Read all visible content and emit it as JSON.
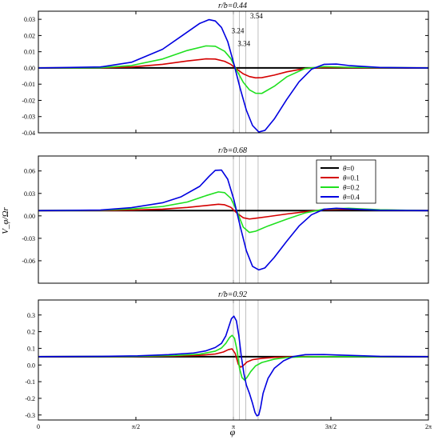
{
  "figure": {
    "ylabel": "V_φ/Ωr",
    "xlabel": "φ"
  },
  "chart_data": [
    {
      "type": "line",
      "panel": 1,
      "title": "r/b=0.44",
      "xlim": [
        0,
        6.2832
      ],
      "ylim": [
        -0.04,
        0.035
      ],
      "yticks": [
        "0.03",
        "0.02",
        "0.01",
        "0.00",
        "-0.01",
        "-0.02",
        "-0.03",
        "-0.04"
      ],
      "ytick_values": [
        0.03,
        0.02,
        0.01,
        0.0,
        -0.01,
        -0.02,
        -0.03,
        -0.04
      ],
      "reference_lines": [
        3.1416,
        3.24,
        3.34,
        3.54
      ],
      "annotations": [
        {
          "text": "3.24",
          "x": 3.24,
          "y": 0.0215
        },
        {
          "text": "3.34",
          "x": 3.34,
          "y": 0.0135
        },
        {
          "text": "3.54",
          "x": 3.54,
          "y": 0.0305
        }
      ],
      "series": [
        {
          "name": "θ=0",
          "color": "#000000",
          "x": [
            0,
            6.2832
          ],
          "y": [
            0.0,
            0.0
          ]
        },
        {
          "name": "θ=0.1",
          "color": "#d40000",
          "x": [
            0,
            1.0,
            1.5,
            2.0,
            2.4,
            2.7,
            2.85,
            3.0,
            3.1,
            3.2,
            3.3,
            3.4,
            3.5,
            3.6,
            3.8,
            4.0,
            4.3,
            4.6,
            5.0,
            6.2832
          ],
          "y": [
            0.0,
            0.0001,
            0.0006,
            0.0022,
            0.0043,
            0.0056,
            0.0055,
            0.0041,
            0.0022,
            -0.0008,
            -0.0036,
            -0.0053,
            -0.0061,
            -0.006,
            -0.0044,
            -0.0024,
            -0.0003,
            0.0003,
            0.0002,
            0.0
          ]
        },
        {
          "name": "θ=0.2",
          "color": "#1fe01f",
          "x": [
            0,
            1.0,
            1.5,
            2.0,
            2.4,
            2.7,
            2.85,
            3.0,
            3.1,
            3.2,
            3.3,
            3.4,
            3.5,
            3.6,
            3.8,
            4.0,
            4.3,
            4.6,
            5.0,
            6.2832
          ],
          "y": [
            0.0,
            0.0002,
            0.0015,
            0.0055,
            0.0108,
            0.0136,
            0.0134,
            0.0103,
            0.0058,
            -0.0018,
            -0.0088,
            -0.0135,
            -0.0156,
            -0.0157,
            -0.0113,
            -0.0055,
            -0.0003,
            0.0008,
            0.0004,
            0.0
          ]
        },
        {
          "name": "θ=0.4",
          "color": "#0000e0",
          "x": [
            0,
            1.0,
            1.5,
            2.0,
            2.3,
            2.6,
            2.75,
            2.85,
            2.95,
            3.05,
            3.15,
            3.25,
            3.35,
            3.45,
            3.55,
            3.65,
            3.8,
            4.0,
            4.2,
            4.4,
            4.6,
            4.8,
            5.0,
            5.5,
            6.2832
          ],
          "y": [
            0.0,
            0.0006,
            0.0035,
            0.0115,
            0.0195,
            0.0275,
            0.0298,
            0.029,
            0.025,
            0.0163,
            0.0025,
            -0.0125,
            -0.026,
            -0.0355,
            -0.0395,
            -0.0385,
            -0.0315,
            -0.0195,
            -0.0085,
            -0.0008,
            0.0022,
            0.0024,
            0.0015,
            0.0003,
            0.0
          ]
        }
      ]
    },
    {
      "type": "line",
      "panel": 2,
      "title": "r/b=0.68",
      "xlim": [
        0,
        6.2832
      ],
      "ylim": [
        -0.09,
        0.08
      ],
      "yticks": [
        "0.06",
        "0.03",
        "0.00",
        "-0.03",
        "-0.06"
      ],
      "ytick_values": [
        0.06,
        0.03,
        0.0,
        -0.03,
        -0.06
      ],
      "reference_lines": [
        3.1416,
        3.24,
        3.34,
        3.54
      ],
      "legend": {
        "position": "top-right"
      },
      "series": [
        {
          "name": "θ=0",
          "color": "#000000",
          "x": [
            0,
            6.2832
          ],
          "y": [
            0.007,
            0.007
          ]
        },
        {
          "name": "θ=0.1",
          "color": "#d40000",
          "x": [
            0,
            1.0,
            1.5,
            2.0,
            2.4,
            2.7,
            2.9,
            3.0,
            3.1,
            3.2,
            3.3,
            3.4,
            3.5,
            3.7,
            4.0,
            4.3,
            4.6,
            5.0,
            5.5,
            6.2832
          ],
          "y": [
            0.007,
            0.0072,
            0.0078,
            0.009,
            0.0112,
            0.0138,
            0.0155,
            0.0148,
            0.0115,
            0.0035,
            -0.0025,
            -0.0042,
            -0.0032,
            -0.001,
            0.0025,
            0.0055,
            0.0082,
            0.0088,
            0.0078,
            0.007
          ]
        },
        {
          "name": "θ=0.2",
          "color": "#1fe01f",
          "x": [
            0,
            1.0,
            1.5,
            2.0,
            2.4,
            2.7,
            2.9,
            3.0,
            3.1,
            3.2,
            3.3,
            3.4,
            3.5,
            3.7,
            4.0,
            4.3,
            4.6,
            5.0,
            5.5,
            6.2832
          ],
          "y": [
            0.007,
            0.0075,
            0.0092,
            0.0125,
            0.0185,
            0.027,
            0.032,
            0.031,
            0.0235,
            0.006,
            -0.015,
            -0.0222,
            -0.0205,
            -0.0135,
            -0.0045,
            0.004,
            0.009,
            0.0102,
            0.0082,
            0.007
          ]
        },
        {
          "name": "θ=0.4",
          "color": "#0000e0",
          "x": [
            0,
            1.0,
            1.5,
            2.0,
            2.3,
            2.6,
            2.75,
            2.85,
            2.95,
            3.05,
            3.15,
            3.25,
            3.35,
            3.45,
            3.55,
            3.65,
            3.8,
            4.0,
            4.2,
            4.4,
            4.6,
            4.8,
            5.0,
            5.5,
            6.2832
          ],
          "y": [
            0.007,
            0.0078,
            0.011,
            0.0175,
            0.0255,
            0.0395,
            0.0528,
            0.0608,
            0.0612,
            0.049,
            0.0215,
            -0.0135,
            -0.0465,
            -0.0675,
            -0.0722,
            -0.0695,
            -0.0555,
            -0.034,
            -0.0135,
            0.0015,
            0.0088,
            0.0102,
            0.0092,
            0.0075,
            0.007
          ]
        }
      ]
    },
    {
      "type": "line",
      "panel": 3,
      "title": "r/b=0.92",
      "xlim": [
        0,
        6.2832
      ],
      "ylim": [
        -0.33,
        0.39
      ],
      "yticks": [
        "0.3",
        "0.2",
        "0.1",
        "0.0",
        "-0.1",
        "-0.2",
        "-0.3"
      ],
      "ytick_values": [
        0.3,
        0.2,
        0.1,
        0.0,
        -0.1,
        -0.2,
        -0.3
      ],
      "xticks": [
        "0",
        "π/2",
        "π",
        "3π/2",
        "2π"
      ],
      "xtick_values": [
        0,
        1.5708,
        3.1416,
        4.7124,
        6.2832
      ],
      "reference_lines": [
        3.1416,
        3.24,
        3.34,
        3.54
      ],
      "series": [
        {
          "name": "θ=0",
          "color": "#000000",
          "x": [
            0,
            6.2832
          ],
          "y": [
            0.05,
            0.05
          ]
        },
        {
          "name": "θ=0.1",
          "color": "#d40000",
          "x": [
            0,
            1.5,
            2.2,
            2.6,
            2.85,
            2.98,
            3.06,
            3.12,
            3.17,
            3.22,
            3.26,
            3.3,
            3.36,
            3.45,
            3.6,
            3.8,
            4.2,
            6.2832
          ],
          "y": [
            0.05,
            0.051,
            0.054,
            0.058,
            0.066,
            0.078,
            0.092,
            0.097,
            0.07,
            0.005,
            -0.013,
            -0.004,
            0.018,
            0.032,
            0.04,
            0.046,
            0.05,
            0.05
          ]
        },
        {
          "name": "θ=0.2",
          "color": "#1fe01f",
          "x": [
            0,
            1.5,
            2.2,
            2.6,
            2.85,
            2.95,
            3.02,
            3.08,
            3.12,
            3.16,
            3.2,
            3.24,
            3.28,
            3.32,
            3.36,
            3.42,
            3.5,
            3.6,
            3.8,
            4.0,
            4.4,
            5.0,
            6.2832
          ],
          "y": [
            0.05,
            0.052,
            0.057,
            0.065,
            0.083,
            0.102,
            0.13,
            0.165,
            0.178,
            0.16,
            0.09,
            -0.02,
            -0.075,
            -0.09,
            -0.075,
            -0.04,
            -0.005,
            0.015,
            0.035,
            0.045,
            0.05,
            0.05,
            0.05
          ]
        },
        {
          "name": "θ=0.4",
          "color": "#0000e0",
          "x": [
            0,
            1.0,
            1.6,
            2.1,
            2.5,
            2.7,
            2.85,
            2.95,
            3.02,
            3.07,
            3.11,
            3.15,
            3.19,
            3.23,
            3.27,
            3.31,
            3.35,
            3.4,
            3.45,
            3.49,
            3.52,
            3.55,
            3.58,
            3.62,
            3.7,
            3.8,
            3.95,
            4.1,
            4.3,
            4.6,
            5.0,
            5.5,
            6.2832
          ],
          "y": [
            0.05,
            0.052,
            0.055,
            0.062,
            0.072,
            0.085,
            0.105,
            0.13,
            0.175,
            0.232,
            0.278,
            0.293,
            0.265,
            0.175,
            0.05,
            -0.05,
            -0.12,
            -0.17,
            -0.23,
            -0.285,
            -0.305,
            -0.3,
            -0.255,
            -0.17,
            -0.08,
            -0.02,
            0.025,
            0.05,
            0.062,
            0.063,
            0.058,
            0.052,
            0.05
          ]
        }
      ]
    }
  ]
}
